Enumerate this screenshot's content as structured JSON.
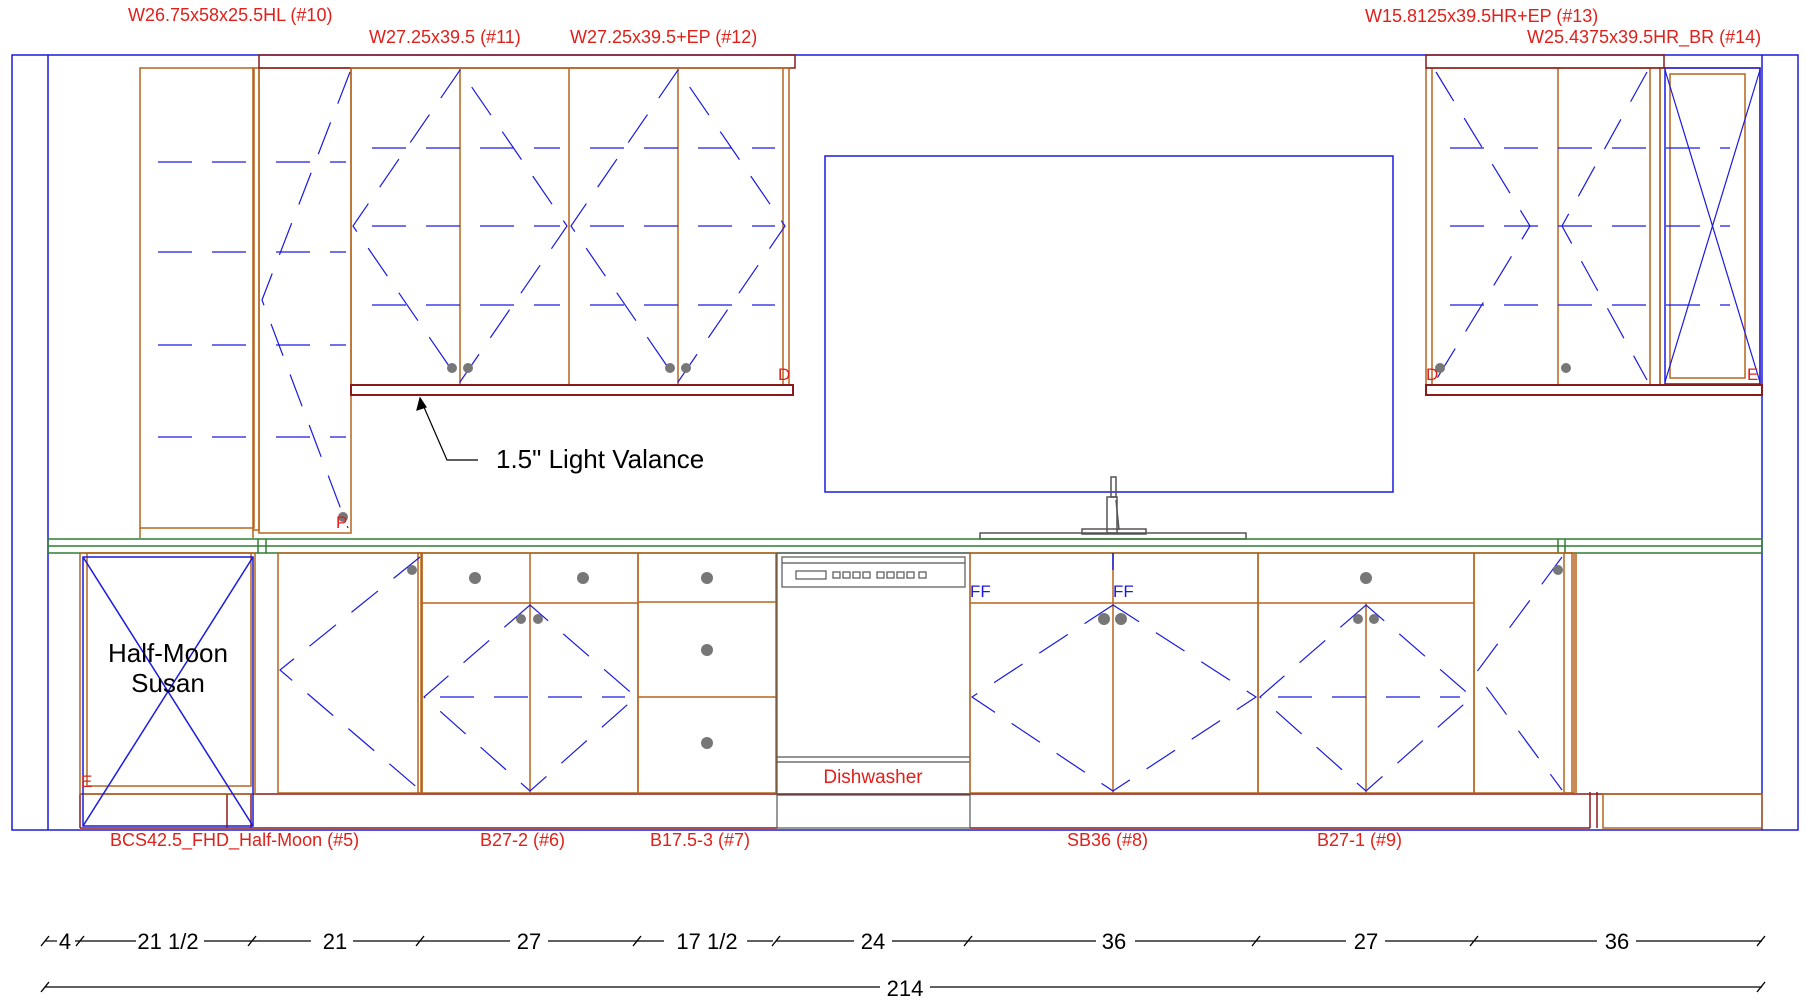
{
  "cabinet_labels": {
    "w10": "W26.75x58x25.5HL (#10)",
    "w11": "W27.25x39.5 (#11)",
    "w12": "W27.25x39.5+EP (#12)",
    "w13": "W15.8125x39.5HR+EP (#13)",
    "w14": "W25.4375x39.5HR_BR (#14)",
    "b5": "BCS42.5_FHD_Half-Moon (#5)",
    "b6": "B27-2 (#6)",
    "b7": "B17.5-3 (#7)",
    "b8": "SB36 (#8)",
    "b9": "B27-1 (#9)"
  },
  "annotations": {
    "valance": "1.5\" Light Valance",
    "half_moon_line1": "Half-Moon",
    "half_moon_line2": "Susan",
    "dishwasher": "Dishwasher",
    "ff": "FF",
    "d": "D",
    "e": "E",
    "p": "P"
  },
  "dimensions": {
    "segments": [
      "4",
      "21 1/2",
      "21",
      "27",
      "17 1/2",
      "24",
      "36",
      "27",
      "36"
    ],
    "total": "214"
  },
  "colors": {
    "wall": "#1a1ae0",
    "cabinet": "#b5651d",
    "label": "#e0201a",
    "countertop": "#2e7d32",
    "valance": "#8b1a1a",
    "knob": "#777777",
    "dim": "#000000"
  }
}
